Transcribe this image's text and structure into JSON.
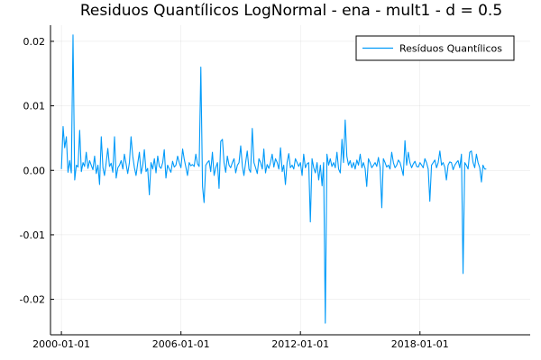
{
  "chart_data": {
    "type": "line",
    "title": "Residuos Quantílicos LogNormal - ena - mult1 - d = 0.5",
    "xlabel": "",
    "ylabel": "",
    "x_start": "2000-01-01",
    "x_end": "2022-12-01",
    "x_frequency": "monthly",
    "xlim": [
      "1999-06-15",
      "2023-07-15"
    ],
    "ylim": [
      -0.0255,
      0.0225
    ],
    "x_ticks": [
      "2000-01-01",
      "2006-01-01",
      "2012-01-01",
      "2018-01-01"
    ],
    "y_ticks": [
      0.02,
      0.01,
      0.0,
      -0.01,
      -0.02
    ],
    "y_tick_labels": [
      "0.02",
      "0.01",
      "0.00",
      "-0.01",
      "-0.02"
    ],
    "grid": true,
    "legend_position": "top-right",
    "series": [
      {
        "name": "Resíduos Quantílicos",
        "color": "#009af9",
        "values": [
          0.0002,
          0.0068,
          0.0035,
          0.0052,
          -0.0003,
          0.0015,
          -0.0004,
          0.021,
          -0.0015,
          0.0008,
          0.0005,
          0.0062,
          -0.0002,
          0.0012,
          0.0006,
          0.0028,
          0.0003,
          0.0015,
          0.0008,
          0.0001,
          0.0022,
          -0.0005,
          0.0008,
          -0.0022,
          0.0052,
          0.0004,
          -0.0008,
          0.0012,
          0.0034,
          0.0006,
          0.0011,
          -0.0003,
          0.0052,
          -0.0012,
          0.0004,
          0.0008,
          0.0015,
          0.0002,
          0.0025,
          0.001,
          -0.0005,
          0.0012,
          0.0052,
          0.0022,
          0.0004,
          -0.0008,
          0.0011,
          0.0028,
          -0.0005,
          0.0008,
          0.0032,
          -0.0002,
          0.0003,
          -0.0038,
          0.0012,
          0.0002,
          0.0018,
          -0.0004,
          0.0022,
          0.0006,
          0.0003,
          0.0012,
          0.0032,
          -0.0012,
          0.0008,
          0.0002,
          -0.0003,
          0.0014,
          0.0005,
          0.0008,
          0.0022,
          0.0012,
          0.0004,
          0.0033,
          0.0018,
          0.0005,
          -0.0008,
          0.0012,
          0.0007,
          0.0009,
          0.0006,
          0.0025,
          0.001,
          0.0006,
          0.016,
          -0.0025,
          -0.005,
          0.0008,
          0.0012,
          0.0015,
          -0.0002,
          0.0028,
          -0.0008,
          0.0004,
          0.0012,
          -0.0028,
          0.0045,
          0.0048,
          0.0012,
          -0.0003,
          0.0022,
          0.0008,
          0.0004,
          0.0012,
          0.0018,
          -0.0004,
          0.0008,
          0.0012,
          0.0038,
          0.0006,
          -0.0008,
          0.0012,
          0.003,
          0.0002,
          -0.0003,
          0.0065,
          0.0012,
          0.0004,
          -0.0005,
          0.0018,
          0.0012,
          0.0002,
          0.0033,
          -0.0004,
          0.0009,
          0.0003,
          0.0012,
          0.0025,
          0.0005,
          0.0018,
          0.0012,
          0.0002,
          0.0035,
          -0.0002,
          0.0008,
          -0.0022,
          0.0012,
          0.0026,
          0.0004,
          0.0008,
          0.0002,
          0.0018,
          0.0012,
          0.0006,
          0.0012,
          -0.0008,
          0.0025,
          0.0004,
          0.001,
          0.0012,
          -0.008,
          0.0018,
          0.0004,
          -0.0004,
          0.0012,
          -0.0015,
          0.0008,
          -0.0024,
          0.0012,
          -0.0237,
          0.0025,
          0.0008,
          0.0018,
          0.0006,
          0.0012,
          0.0004,
          0.0028,
          0.0002,
          -0.0004,
          0.0048,
          0.0012,
          0.0078,
          0.0022,
          0.0008,
          0.0015,
          0.0004,
          0.0012,
          0.0002,
          0.0016,
          0.0008,
          0.0025,
          0.0004,
          0.0012,
          0.0003,
          -0.0025,
          0.0018,
          0.0012,
          0.0004,
          0.0008,
          0.0012,
          0.0006,
          0.002,
          0.0004,
          -0.0058,
          0.0018,
          0.0012,
          0.0005,
          0.0008,
          0.0002,
          0.0028,
          0.0012,
          0.0004,
          0.0008,
          0.0016,
          0.0012,
          0.0002,
          -0.0008,
          0.0046,
          0.0008,
          0.0028,
          0.0012,
          0.0004,
          0.001,
          0.0014,
          0.0006,
          0.0005,
          0.0012,
          0.0008,
          0.0004,
          0.0018,
          0.0012,
          0.0002,
          -0.0048,
          0.0008,
          0.0012,
          0.0016,
          0.0004,
          0.0012,
          0.003,
          0.0008,
          0.0012,
          0.0005,
          -0.0015,
          0.0008,
          0.0013,
          0.0012,
          0.0001,
          0.0008,
          0.0012,
          0.0015,
          0.0004,
          0.0025,
          -0.016,
          0.0012,
          0.0008,
          0.0002,
          0.0028,
          0.003,
          0.0012,
          0.0004,
          0.0025,
          0.0012,
          0.0004,
          -0.0018,
          0.0008,
          0.0002,
          0.0002
        ]
      }
    ]
  }
}
